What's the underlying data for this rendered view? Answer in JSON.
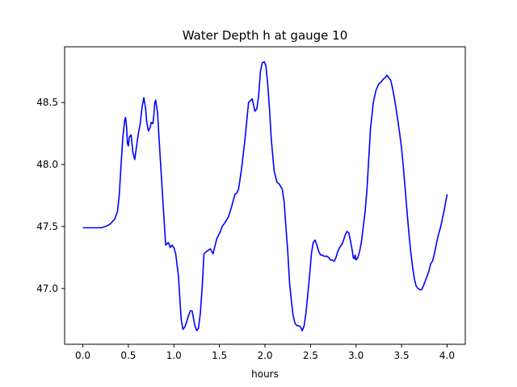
{
  "chart_data": {
    "type": "line",
    "title": "Water Depth h at gauge 10",
    "xlabel": "hours",
    "ylabel": "",
    "xlim": [
      -0.2,
      4.2
    ],
    "ylim": [
      46.55,
      48.95
    ],
    "xticks": [
      0.0,
      0.5,
      1.0,
      1.5,
      2.0,
      2.5,
      3.0,
      3.5,
      4.0
    ],
    "xtick_labels": [
      "0.0",
      "0.5",
      "1.0",
      "1.5",
      "2.0",
      "2.5",
      "3.0",
      "3.5",
      "4.0"
    ],
    "yticks": [
      47.0,
      47.5,
      48.0,
      48.5
    ],
    "ytick_labels": [
      "47.0",
      "47.5",
      "48.0",
      "48.5"
    ],
    "grid": false,
    "series": [
      {
        "color": "#0000ff",
        "x": [
          0.0,
          0.1,
          0.2,
          0.25,
          0.3,
          0.35,
          0.38,
          0.4,
          0.42,
          0.44,
          0.46,
          0.47,
          0.48,
          0.49,
          0.5,
          0.51,
          0.53,
          0.55,
          0.57,
          0.59,
          0.61,
          0.63,
          0.65,
          0.67,
          0.69,
          0.7,
          0.72,
          0.74,
          0.75,
          0.77,
          0.78,
          0.79,
          0.8,
          0.82,
          0.83,
          0.85,
          0.88,
          0.91,
          0.94,
          0.96,
          0.98,
          1.0,
          1.02,
          1.05,
          1.08,
          1.1,
          1.12,
          1.14,
          1.16,
          1.18,
          1.2,
          1.23,
          1.25,
          1.27,
          1.29,
          1.31,
          1.33,
          1.36,
          1.4,
          1.43,
          1.47,
          1.49,
          1.51,
          1.53,
          1.56,
          1.6,
          1.63,
          1.67,
          1.69,
          1.71,
          1.74,
          1.78,
          1.82,
          1.86,
          1.89,
          1.91,
          1.93,
          1.95,
          1.97,
          1.99,
          2.01,
          2.03,
          2.05,
          2.07,
          2.1,
          2.13,
          2.16,
          2.19,
          2.21,
          2.23,
          2.25,
          2.27,
          2.29,
          2.31,
          2.33,
          2.35,
          2.37,
          2.39,
          2.41,
          2.43,
          2.45,
          2.47,
          2.49,
          2.51,
          2.53,
          2.55,
          2.57,
          2.59,
          2.61,
          2.63,
          2.65,
          2.68,
          2.7,
          2.72,
          2.74,
          2.76,
          2.78,
          2.8,
          2.82,
          2.84,
          2.86,
          2.88,
          2.9,
          2.92,
          2.94,
          2.96,
          2.97,
          2.98,
          2.99,
          3.0,
          3.02,
          3.04,
          3.06,
          3.08,
          3.1,
          3.12,
          3.14,
          3.16,
          3.19,
          3.22,
          3.25,
          3.28,
          3.3,
          3.32,
          3.34,
          3.36,
          3.38,
          3.4,
          3.42,
          3.44,
          3.46,
          3.48,
          3.5,
          3.52,
          3.54,
          3.56,
          3.58,
          3.6,
          3.62,
          3.64,
          3.66,
          3.68,
          3.7,
          3.72,
          3.74,
          3.76,
          3.78,
          3.8,
          3.82,
          3.84,
          3.86,
          3.88,
          3.9,
          3.93,
          3.96,
          4.0
        ],
        "y": [
          47.49,
          47.49,
          47.49,
          47.5,
          47.52,
          47.56,
          47.62,
          47.75,
          48.0,
          48.22,
          48.36,
          48.38,
          48.3,
          48.17,
          48.15,
          48.22,
          48.24,
          48.1,
          48.04,
          48.15,
          48.25,
          48.33,
          48.46,
          48.54,
          48.45,
          48.35,
          48.27,
          48.3,
          48.34,
          48.33,
          48.4,
          48.5,
          48.52,
          48.42,
          48.3,
          48.05,
          47.7,
          47.35,
          47.37,
          47.33,
          47.35,
          47.33,
          47.28,
          47.1,
          46.75,
          46.67,
          46.69,
          46.73,
          46.78,
          46.82,
          46.82,
          46.7,
          46.66,
          46.68,
          46.8,
          47.0,
          47.28,
          47.3,
          47.32,
          47.28,
          47.4,
          47.43,
          47.46,
          47.5,
          47.53,
          47.58,
          47.65,
          47.76,
          47.77,
          47.8,
          47.95,
          48.2,
          48.5,
          48.53,
          48.43,
          48.45,
          48.55,
          48.75,
          48.82,
          48.83,
          48.8,
          48.65,
          48.45,
          48.2,
          47.95,
          47.86,
          47.84,
          47.8,
          47.7,
          47.5,
          47.3,
          47.05,
          46.9,
          46.78,
          46.72,
          46.7,
          46.7,
          46.69,
          46.66,
          46.7,
          46.8,
          46.95,
          47.1,
          47.28,
          47.37,
          47.39,
          47.35,
          47.3,
          47.27,
          47.27,
          47.26,
          47.26,
          47.25,
          47.23,
          47.23,
          47.22,
          47.25,
          47.3,
          47.33,
          47.35,
          47.38,
          47.43,
          47.46,
          47.45,
          47.38,
          47.3,
          47.25,
          47.24,
          47.27,
          47.23,
          47.25,
          47.3,
          47.38,
          47.5,
          47.62,
          47.8,
          48.05,
          48.3,
          48.5,
          48.6,
          48.65,
          48.67,
          48.69,
          48.7,
          48.72,
          48.7,
          48.68,
          48.62,
          48.54,
          48.45,
          48.35,
          48.25,
          48.13,
          47.98,
          47.8,
          47.62,
          47.45,
          47.3,
          47.18,
          47.08,
          47.02,
          47.0,
          46.99,
          46.99,
          47.02,
          47.06,
          47.1,
          47.14,
          47.2,
          47.22,
          47.28,
          47.35,
          47.42,
          47.5,
          47.6,
          47.76
        ]
      }
    ]
  }
}
